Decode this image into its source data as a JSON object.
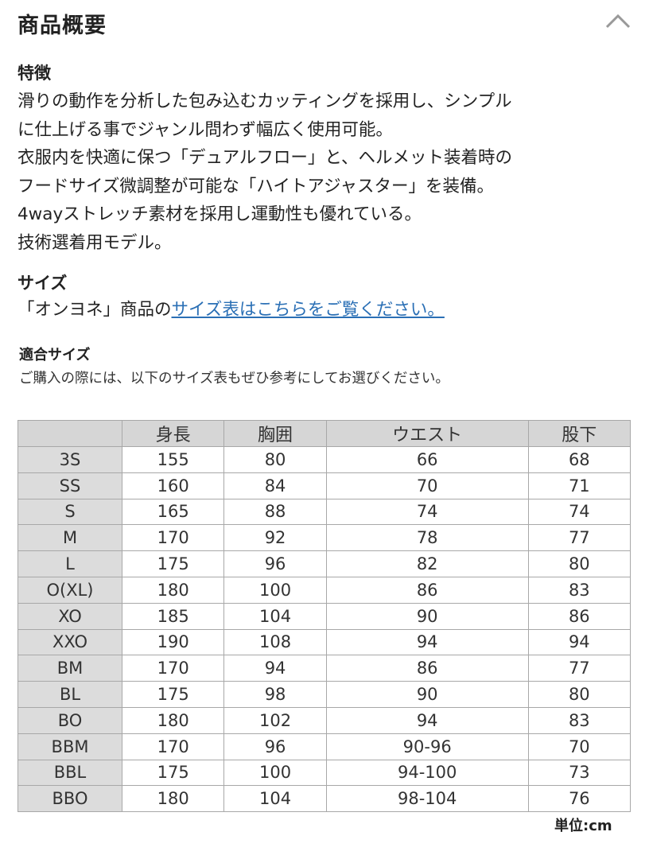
{
  "header": {
    "title": "商品概要",
    "collapse_icon": "chevron-up-icon"
  },
  "features": {
    "heading": "特徴",
    "lines": [
      "滑りの動作を分析した包み込むカッティングを採用し、シンプル",
      "に仕上げる事でジャンル問わず幅広く使用可能。",
      "衣服内を快適に保つ「デュアルフロー」と、ヘルメット装着時の",
      "フードサイズ微調整が可能な「ハイトアジャスター」を装備。",
      "4wayストレッチ素材を採用し運動性も優れている。",
      "技術選着用モデル。"
    ]
  },
  "size": {
    "heading": "サイズ",
    "prefix": "「オンヨネ」商品の",
    "link": "サイズ表はこちらをご覧ください。"
  },
  "fit": {
    "heading": "適合サイズ",
    "subtitle": "ご購入の際には、以下のサイズ表もぜひ参考にしてお選びください。"
  },
  "table": {
    "headers": [
      "",
      "身長",
      "胸囲",
      "ウエスト",
      "股下"
    ],
    "rows": [
      [
        "3S",
        "155",
        "80",
        "66",
        "68"
      ],
      [
        "SS",
        "160",
        "84",
        "70",
        "71"
      ],
      [
        "S",
        "165",
        "88",
        "74",
        "74"
      ],
      [
        "M",
        "170",
        "92",
        "78",
        "77"
      ],
      [
        "L",
        "175",
        "96",
        "82",
        "80"
      ],
      [
        "O(XL)",
        "180",
        "100",
        "86",
        "83"
      ],
      [
        "XO",
        "185",
        "104",
        "90",
        "86"
      ],
      [
        "XXO",
        "190",
        "108",
        "94",
        "94"
      ],
      [
        "BM",
        "170",
        "94",
        "86",
        "77"
      ],
      [
        "BL",
        "175",
        "98",
        "90",
        "80"
      ],
      [
        "BO",
        "180",
        "102",
        "94",
        "83"
      ],
      [
        "BBM",
        "170",
        "96",
        "90-96",
        "70"
      ],
      [
        "BBL",
        "175",
        "100",
        "94-100",
        "73"
      ],
      [
        "BBO",
        "180",
        "104",
        "98-104",
        "76"
      ]
    ],
    "unit": "単位:cm"
  }
}
